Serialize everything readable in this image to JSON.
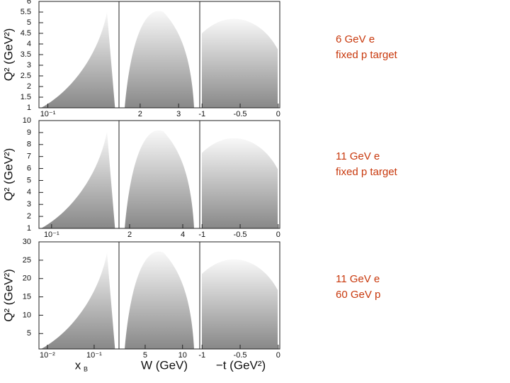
{
  "rows": [
    {
      "y_axis_label": "Q² (GeV²)",
      "ylim": [
        1,
        6
      ],
      "yticks": [
        1,
        1.5,
        2,
        2.5,
        3,
        3.5,
        4,
        4.5,
        5,
        5.5,
        6
      ],
      "label_lines": [
        "6 GeV e",
        "fixed p target"
      ],
      "panels": [
        {
          "xscale": "log",
          "xlim": [
            0.075,
            1
          ],
          "xticks": [
            {
              "value": 0.1,
              "label": "10⁻¹"
            }
          ]
        },
        {
          "xscale": "linear",
          "xlim": [
            1.45,
            3.55
          ],
          "xticks": [
            2,
            3
          ]
        },
        {
          "xscale": "linear",
          "xlim": [
            -1.03,
            0.02
          ],
          "xticks": [
            -1,
            -0.5,
            0
          ]
        }
      ]
    },
    {
      "y_axis_label": "Q² (GeV²)",
      "ylim": [
        1,
        10
      ],
      "yticks": [
        1,
        2,
        3,
        4,
        5,
        6,
        7,
        8,
        9,
        10
      ],
      "label_lines": [
        "11 GeV e",
        "fixed p target"
      ],
      "panels": [
        {
          "xscale": "log",
          "xlim": [
            0.065,
            1
          ],
          "xticks": [
            {
              "value": 0.1,
              "label": "10⁻¹"
            }
          ]
        },
        {
          "xscale": "linear",
          "xlim": [
            1.6,
            4.64
          ],
          "xticks": [
            2,
            4
          ]
        },
        {
          "xscale": "linear",
          "xlim": [
            -1.03,
            0.02
          ],
          "xticks": [
            -1,
            -0.5,
            0
          ]
        }
      ]
    },
    {
      "y_axis_label": "Q² (GeV²)",
      "ylim": [
        0.8,
        30
      ],
      "yticks": [
        5,
        10,
        15,
        20,
        25,
        30
      ],
      "label_lines": [
        "11 GeV e",
        "60 GeV p"
      ],
      "panels": [
        {
          "xscale": "log",
          "xlim": [
            0.0066,
            0.34
          ],
          "xticks": [
            {
              "value": 0.01,
              "label": "10⁻²"
            },
            {
              "value": 0.1,
              "label": "10⁻¹"
            }
          ]
        },
        {
          "xscale": "linear",
          "xlim": [
            1.5,
            12.3
          ],
          "xticks": [
            5,
            10
          ]
        },
        {
          "xscale": "linear",
          "xlim": [
            -1.03,
            0.02
          ],
          "xticks": [
            -1,
            -0.5,
            0
          ]
        }
      ]
    }
  ],
  "x_axis_labels": [
    "x",
    "W (GeV)",
    "−t (GeV²)"
  ],
  "x_axis_label_subscript": "B"
}
